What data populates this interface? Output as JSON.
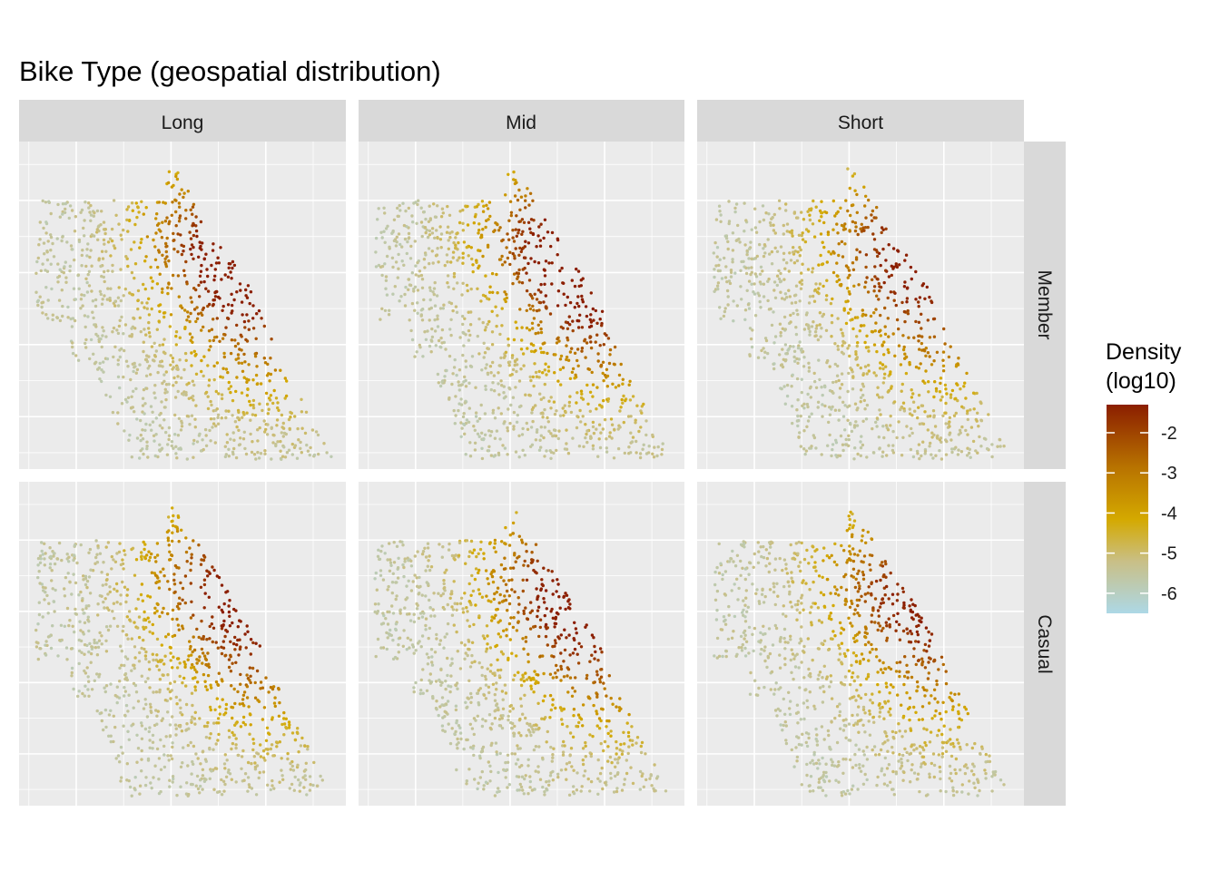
{
  "chart_data": {
    "type": "scatter",
    "title": "Bike Type (geospatial distribution)",
    "xlabel": "",
    "ylabel": "",
    "grid": true,
    "legend_placement": "right",
    "facet_cols": [
      "Long",
      "Mid",
      "Short"
    ],
    "facet_rows": [
      "Member",
      "Casual"
    ],
    "legend": {
      "title_line1": "Density",
      "title_line2": "(log10)",
      "range": [
        -6.5,
        -1.3
      ],
      "ticks": [
        -2,
        -3,
        -4,
        -5,
        -6
      ],
      "tick_labels": [
        "-2",
        "-3",
        "-4",
        "-5",
        "-6"
      ],
      "colors": [
        "#add8e6",
        "#d2b55b",
        "#d4a900",
        "#b87300",
        "#8b1e00"
      ]
    },
    "hotspots": [
      {
        "x": 0.69,
        "y": 0.42,
        "strength": 1.0
      },
      {
        "x": 0.55,
        "y": 0.26,
        "strength": 0.7
      },
      {
        "x": 0.77,
        "y": 0.64,
        "strength": 0.45
      }
    ]
  },
  "colors": {
    "panel_bg": "#ebebeb",
    "strip_bg": "#d9d9d9",
    "grid": "#ffffff",
    "text": "#1a1a1a"
  }
}
